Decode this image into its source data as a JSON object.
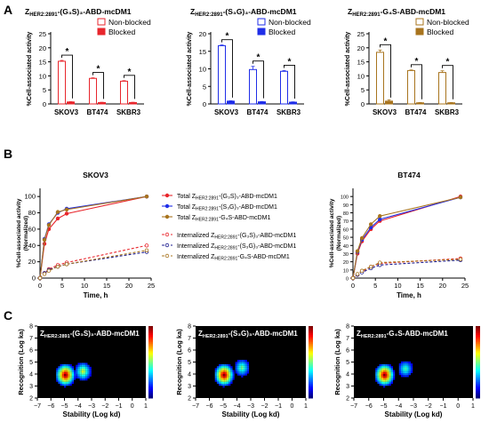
{
  "panels": {
    "A": "A",
    "B": "B",
    "C": "C"
  },
  "colors": {
    "red": "#e8262c",
    "blue": "#1f2ee8",
    "brown": "#a8741e",
    "navy": "#1b1b8f"
  },
  "chart_data": [
    {
      "type": "bar",
      "panel": "A",
      "title_main": "Z",
      "title_sub": "HER2:2891",
      "title_rest": "-(G₃S)₃-ABD-mcDM1",
      "ylabel": "%Cell-associated activity",
      "ylim": [
        0,
        25
      ],
      "yticks": [
        "0",
        "5",
        "10",
        "15",
        "20",
        "25"
      ],
      "categories": [
        "SKOV3",
        "BT474",
        "SKBR3"
      ],
      "legend": [
        "Non-blocked",
        "Blocked"
      ],
      "sig": [
        "*",
        "*",
        "*"
      ],
      "series": [
        {
          "name": "Non-blocked",
          "values": [
            15.2,
            9.1,
            8.1
          ],
          "errors": [
            0.3,
            0.2,
            0.2
          ]
        },
        {
          "name": "Blocked",
          "values": [
            0.7,
            0.5,
            0.5
          ],
          "errors": [
            0.1,
            0.1,
            0.1
          ]
        }
      ]
    },
    {
      "type": "bar",
      "panel": "A",
      "title_main": "Z",
      "title_sub": "HER2:2891",
      "title_rest": "-(S₃G)₃-ABD-mcDM1",
      "ylabel": "%Cell-associated activity",
      "ylim": [
        0,
        20
      ],
      "yticks": [
        "0",
        "5",
        "10",
        "15",
        "20"
      ],
      "categories": [
        "SKOV3",
        "BT474",
        "SKBR3"
      ],
      "legend": [
        "Non-blocked",
        "Blocked"
      ],
      "sig": [
        "*",
        "*",
        "*"
      ],
      "series": [
        {
          "name": "Non-blocked",
          "values": [
            16.6,
            9.8,
            9.3
          ],
          "errors": [
            0.2,
            0.9,
            0.2
          ]
        },
        {
          "name": "Blocked",
          "values": [
            0.8,
            0.6,
            0.5
          ],
          "errors": [
            0.1,
            0.1,
            0.1
          ]
        }
      ]
    },
    {
      "type": "bar",
      "panel": "A",
      "title_main": "Z",
      "title_sub": "HER2:2891",
      "title_rest": "-G₄S-ABD-mcDM1",
      "ylabel": "%Cell-associated activity",
      "ylim": [
        0,
        25
      ],
      "yticks": [
        "0",
        "5",
        "10",
        "15",
        "20",
        "25"
      ],
      "categories": [
        "SKOV3",
        "BT474",
        "SKBR3"
      ],
      "legend": [
        "Non-blocked",
        "Blocked"
      ],
      "sig": [
        "*",
        "*",
        "*"
      ],
      "series": [
        {
          "name": "Non-blocked",
          "values": [
            18.4,
            11.9,
            11.2
          ],
          "errors": [
            0.8,
            0.2,
            0.6
          ]
        },
        {
          "name": "Blocked",
          "values": [
            1.0,
            0.4,
            0.4
          ],
          "errors": [
            0.5,
            0.1,
            0.1
          ]
        }
      ]
    },
    {
      "type": "line",
      "panel": "B",
      "title": "SKOV3",
      "xlabel": "Time, h",
      "ylabel": "%Cell-associated activity",
      "ylabel2": "(Normalized)",
      "xlim": [
        0,
        25
      ],
      "ylim": [
        0,
        110
      ],
      "xticks": [
        "0",
        "5",
        "10",
        "15",
        "20",
        "25"
      ],
      "yticks": [
        "0",
        "20",
        "40",
        "60",
        "80",
        "100"
      ],
      "x": [
        0,
        1,
        2,
        4,
        6,
        24
      ],
      "series": [
        {
          "prefix": "Total Z",
          "sub": "HER2:2891",
          "suffix": "-(G₃S)₃-ABD-mcDM1",
          "color": "#e8262c",
          "dashed": false,
          "values": [
            0,
            42,
            60,
            73,
            79,
            100
          ]
        },
        {
          "prefix": "Total Z",
          "sub": "HER2:2891",
          "suffix": "-(S₃G)₃-ABD-mcDM1",
          "color": "#1f2ee8",
          "dashed": false,
          "values": [
            0,
            48,
            66,
            80,
            85,
            100
          ]
        },
        {
          "prefix": "Total Z",
          "sub": "HER2:2891",
          "suffix": "-G₄S-ABD-mcDM1",
          "color": "#a8741e",
          "dashed": false,
          "values": [
            0,
            47,
            65,
            81,
            84,
            100
          ]
        },
        {
          "prefix": "Internalized Z",
          "sub": "HER2:2891",
          "suffix": "-(G₃S)₃-ABD-mcDM1",
          "color": "#e8262c",
          "dashed": true,
          "values": [
            0,
            6,
            11,
            16,
            19,
            40
          ]
        },
        {
          "prefix": "Internalized Z",
          "sub": "HER2:2891",
          "suffix": "-(S₃G)₃-ABD-mcDM1",
          "color": "#1b1b8f",
          "dashed": true,
          "values": [
            0,
            6,
            10,
            14,
            17,
            32
          ]
        },
        {
          "prefix": "Internalized Z",
          "sub": "HER2:2891",
          "suffix": "-G₄S-ABD-mcDM1",
          "color": "#a8741e",
          "dashed": true,
          "values": [
            0,
            5,
            9,
            14,
            17,
            34
          ]
        }
      ]
    },
    {
      "type": "line",
      "panel": "B",
      "title": "BT474",
      "xlabel": "Time, h",
      "ylabel": "%Cell-associated activity",
      "ylabel2": "(Normalized)",
      "xlim": [
        0,
        25
      ],
      "ylim": [
        0,
        110
      ],
      "xticks": [
        "0",
        "5",
        "10",
        "15",
        "20",
        "25"
      ],
      "yticks": [
        "0",
        "10",
        "20",
        "30",
        "40",
        "50",
        "60",
        "70",
        "80",
        "90",
        "100"
      ],
      "x": [
        0,
        1,
        2,
        4,
        6,
        24
      ],
      "series": [
        {
          "color": "#e8262c",
          "dashed": false,
          "values": [
            0,
            30,
            45,
            60,
            70,
            100
          ]
        },
        {
          "color": "#1f2ee8",
          "dashed": false,
          "values": [
            0,
            32,
            47,
            62,
            72,
            99
          ]
        },
        {
          "color": "#a8741e",
          "dashed": false,
          "values": [
            0,
            33,
            49,
            66,
            76,
            99
          ]
        },
        {
          "color": "#e8262c",
          "dashed": true,
          "values": [
            0,
            4,
            8,
            14,
            18,
            24
          ]
        },
        {
          "color": "#1b1b8f",
          "dashed": true,
          "values": [
            0,
            4,
            7,
            12,
            16,
            22
          ]
        },
        {
          "color": "#a8741e",
          "dashed": true,
          "values": [
            0,
            5,
            9,
            14,
            19,
            23
          ]
        }
      ]
    },
    {
      "type": "heatmap",
      "panel": "C",
      "title_main": "Z",
      "title_sub": "HER2:2891",
      "title_rest": "-(G₃S)₃-ABD-mcDM1",
      "xlabel": "Stability (Log kd)",
      "ylabel": "Recognition (Log ka)",
      "xlim": [
        -7,
        1
      ],
      "ylim": [
        2,
        8
      ],
      "xticks": [
        "−7",
        "−6",
        "−5",
        "−4",
        "−3",
        "−2",
        "−1",
        "0",
        "1"
      ],
      "yticks": [
        "2",
        "3",
        "4",
        "5",
        "6",
        "7",
        "8"
      ],
      "peaks": [
        {
          "x": -5.0,
          "y": 4.0,
          "intensity": 1.0
        },
        {
          "x": -3.7,
          "y": 4.3,
          "intensity": 0.55
        }
      ]
    },
    {
      "type": "heatmap",
      "panel": "C",
      "title_main": "Z",
      "title_sub": "HER2:2891",
      "title_rest": "-(S₃G)₃-ABD-mcDM1",
      "xlabel": "Stability (Log kd)",
      "ylabel": "Recognition (Log ka)",
      "xlim": [
        -7,
        1
      ],
      "ylim": [
        2,
        8
      ],
      "xticks": [
        "−7",
        "−6",
        "−5",
        "−4",
        "−3",
        "−2",
        "−1",
        "0",
        "1"
      ],
      "yticks": [
        "2",
        "3",
        "4",
        "5",
        "6",
        "7",
        "8"
      ],
      "peaks": [
        {
          "x": -5.0,
          "y": 4.0,
          "intensity": 1.0
        },
        {
          "x": -3.7,
          "y": 4.6,
          "intensity": 0.45
        }
      ]
    },
    {
      "type": "heatmap",
      "panel": "C",
      "title_main": "Z",
      "title_sub": "HER2:2891",
      "title_rest": "-G₄S-ABD-mcDM1",
      "xlabel": "Stability (Log kd)",
      "ylabel": "Recognition (Log ka)",
      "xlim": [
        -7,
        1
      ],
      "ylim": [
        2,
        8
      ],
      "xticks": [
        "−7",
        "−6",
        "−5",
        "−4",
        "−3",
        "−2",
        "−1",
        "0",
        "1"
      ],
      "yticks": [
        "2",
        "3",
        "4",
        "5",
        "6",
        "7",
        "8"
      ],
      "peaks": [
        {
          "x": -5.0,
          "y": 4.0,
          "intensity": 1.0
        },
        {
          "x": -3.6,
          "y": 4.5,
          "intensity": 0.4
        }
      ]
    }
  ]
}
